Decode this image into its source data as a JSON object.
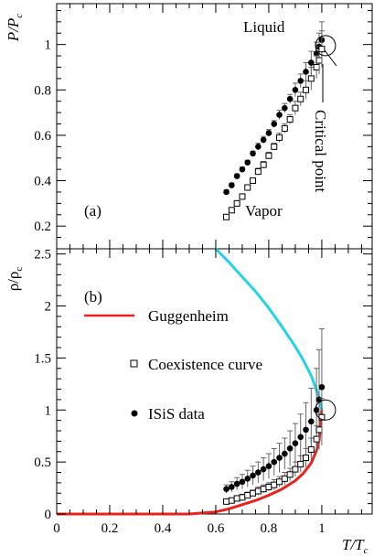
{
  "chart_data": [
    {
      "id": "a",
      "type": "scatter",
      "panel_label": "(a)",
      "xlabel": "",
      "ylabel": "P/P_c",
      "xlim": [
        0,
        1.19
      ],
      "ylim": [
        0.1,
        1.18
      ],
      "yticks": [
        0.2,
        0.4,
        0.6,
        0.8,
        1
      ],
      "ytick_labels": [
        "0.2",
        "0.4",
        "0.6",
        "0.8",
        "1"
      ],
      "annotations": [
        {
          "text": "Liquid",
          "x": 0.87,
          "y": 1.07
        },
        {
          "text": "Vapor",
          "x": 0.84,
          "y": 0.26
        },
        {
          "text": "Critical point",
          "x": 1.02,
          "y": 0.97,
          "rotated": true
        }
      ],
      "critical_circle": {
        "x": 1.0,
        "y": 0.995
      },
      "series": [
        {
          "marker": "filled-circle",
          "x": [
            0.64,
            0.66,
            0.68,
            0.7,
            0.72,
            0.74,
            0.76,
            0.78,
            0.8,
            0.82,
            0.84,
            0.86,
            0.88,
            0.9,
            0.92,
            0.94,
            0.96,
            0.98,
            0.99,
            1.0
          ],
          "y": [
            0.35,
            0.38,
            0.42,
            0.45,
            0.48,
            0.52,
            0.55,
            0.58,
            0.61,
            0.65,
            0.69,
            0.72,
            0.76,
            0.8,
            0.84,
            0.88,
            0.92,
            0.96,
            0.99,
            1.02
          ],
          "yerr": [
            0.01,
            0.01,
            0.01,
            0.01,
            0.01,
            0.01,
            0.015,
            0.015,
            0.015,
            0.015,
            0.02,
            0.02,
            0.02,
            0.03,
            0.03,
            0.04,
            0.05,
            0.05,
            0.06,
            0.08
          ]
        },
        {
          "marker": "open-square",
          "x": [
            0.64,
            0.66,
            0.68,
            0.7,
            0.72,
            0.74,
            0.76,
            0.78,
            0.8,
            0.82,
            0.84,
            0.86,
            0.88,
            0.9,
            0.92,
            0.94,
            0.96,
            0.98,
            0.99,
            1.0
          ],
          "y": [
            0.24,
            0.27,
            0.3,
            0.33,
            0.37,
            0.4,
            0.44,
            0.47,
            0.51,
            0.55,
            0.59,
            0.63,
            0.67,
            0.72,
            0.76,
            0.8,
            0.85,
            0.9,
            0.93,
            0.98
          ],
          "yerr": [
            0.01,
            0.01,
            0.01,
            0.01,
            0.01,
            0.01,
            0.015,
            0.015,
            0.015,
            0.015,
            0.02,
            0.02,
            0.02,
            0.03,
            0.03,
            0.04,
            0.05,
            0.05,
            0.06,
            0.08
          ]
        }
      ]
    },
    {
      "id": "b",
      "type": "scatter",
      "panel_label": "(b)",
      "xlabel": "T/T_c",
      "ylabel": "ρ/ρ_c",
      "xlim": [
        0,
        1.19
      ],
      "ylim": [
        0,
        2.55
      ],
      "xticks": [
        0,
        0.2,
        0.4,
        0.6,
        0.8,
        1
      ],
      "xtick_labels": [
        "0",
        "0.2",
        "0.4",
        "0.6",
        "0.8",
        "1"
      ],
      "yticks": [
        0,
        0.5,
        1,
        1.5,
        2,
        2.5
      ],
      "ytick_labels": [
        "0",
        "0.5",
        "1",
        "1.5",
        "2",
        "2.5"
      ],
      "critical_circle": {
        "x": 1.0,
        "y": 1.0
      },
      "legend": [
        {
          "label": "Guggenheim",
          "marker": "line",
          "color": "#e8231c"
        },
        {
          "label": "Coexistence curve",
          "marker": "open-square"
        },
        {
          "label": "ISiS data",
          "marker": "filled-circle"
        }
      ],
      "curves": [
        {
          "name": "Guggenheim",
          "color": "#e8231c",
          "x": [
            0.0,
            0.3,
            0.5,
            0.6,
            0.65,
            0.7,
            0.75,
            0.8,
            0.85,
            0.9,
            0.93,
            0.96,
            0.98,
            0.99,
            1.0
          ],
          "y": [
            0.0,
            0.0,
            0.0,
            0.02,
            0.05,
            0.09,
            0.13,
            0.18,
            0.24,
            0.32,
            0.39,
            0.49,
            0.61,
            0.71,
            1.0
          ]
        },
        {
          "name": "liquid branch",
          "color": "#22d3e8",
          "x": [
            0.6,
            0.65,
            0.7,
            0.75,
            0.8,
            0.85,
            0.9,
            0.93,
            0.96,
            0.98,
            0.99,
            1.0
          ],
          "y": [
            2.55,
            2.42,
            2.28,
            2.14,
            1.98,
            1.8,
            1.61,
            1.48,
            1.33,
            1.19,
            1.12,
            1.0
          ]
        }
      ],
      "series": [
        {
          "marker": "filled-circle",
          "x": [
            0.64,
            0.66,
            0.68,
            0.7,
            0.72,
            0.74,
            0.76,
            0.78,
            0.8,
            0.82,
            0.84,
            0.86,
            0.88,
            0.9,
            0.92,
            0.94,
            0.96,
            0.98,
            0.99,
            1.0
          ],
          "y": [
            0.24,
            0.26,
            0.29,
            0.31,
            0.34,
            0.37,
            0.4,
            0.43,
            0.46,
            0.5,
            0.54,
            0.58,
            0.63,
            0.68,
            0.74,
            0.81,
            0.89,
            1.0,
            1.1,
            1.22
          ],
          "yerr": [
            0.04,
            0.05,
            0.06,
            0.07,
            0.08,
            0.09,
            0.1,
            0.11,
            0.12,
            0.13,
            0.14,
            0.15,
            0.17,
            0.19,
            0.22,
            0.26,
            0.32,
            0.4,
            0.48,
            0.56
          ]
        },
        {
          "marker": "open-square",
          "x": [
            0.64,
            0.66,
            0.68,
            0.7,
            0.72,
            0.74,
            0.76,
            0.78,
            0.8,
            0.82,
            0.84,
            0.86,
            0.88,
            0.9,
            0.92,
            0.94,
            0.96,
            0.98,
            0.99,
            1.0
          ],
          "y": [
            0.12,
            0.13,
            0.15,
            0.16,
            0.18,
            0.2,
            0.22,
            0.24,
            0.26,
            0.28,
            0.31,
            0.34,
            0.38,
            0.43,
            0.48,
            0.54,
            0.62,
            0.72,
            0.81,
            0.93
          ],
          "yerr": [
            0.02,
            0.02,
            0.02,
            0.03,
            0.03,
            0.03,
            0.04,
            0.04,
            0.04,
            0.05,
            0.05,
            0.06,
            0.06,
            0.07,
            0.08,
            0.09,
            0.11,
            0.13,
            0.15,
            0.18
          ]
        }
      ]
    }
  ]
}
